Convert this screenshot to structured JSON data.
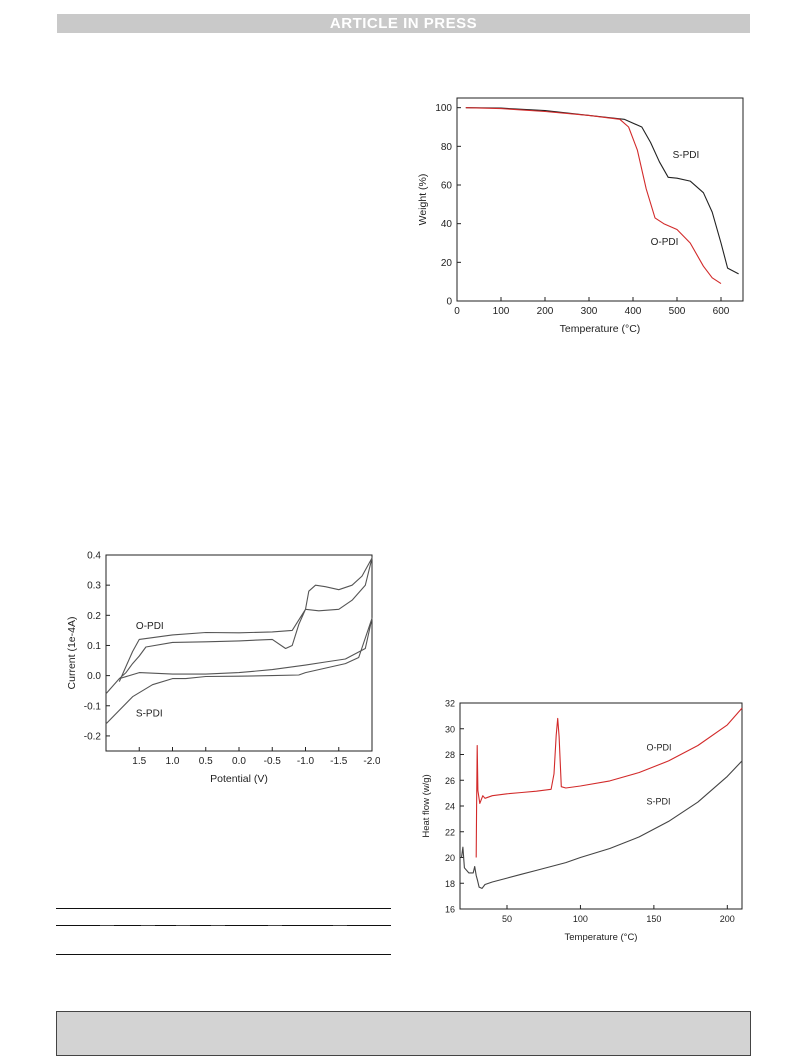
{
  "header": {
    "text": "ARTICLE IN PRESS"
  },
  "charts": [
    {
      "id": "tga",
      "xlabel": "Temperature (°C)",
      "ylabel": "Weight (%)",
      "xlim": [
        0,
        650
      ],
      "ylim": [
        0,
        105
      ],
      "xticks": [
        0,
        100,
        200,
        300,
        400,
        500,
        600
      ],
      "yticks": [
        0,
        20,
        40,
        60,
        80,
        100
      ],
      "annotations": [
        {
          "text": "S-PDI",
          "x": 490,
          "y": 74
        },
        {
          "text": "O-PDI",
          "x": 440,
          "y": 29
        }
      ]
    },
    {
      "id": "cv",
      "xlabel": "Potential (V)",
      "ylabel": "Current (1e-4A)",
      "xlim": [
        2.0,
        -2.0
      ],
      "ylim": [
        -0.25,
        0.4
      ],
      "xticks": [
        1.5,
        1.0,
        0.5,
        0.0,
        -0.5,
        -1.0,
        -1.5,
        -2.0
      ],
      "xtick_labels": [
        "1.5",
        "1.0",
        "0.5",
        "0.0",
        "-0.5",
        "-1.0",
        "-1.5",
        "-2.0"
      ],
      "yticks": [
        -0.2,
        -0.1,
        0.0,
        0.1,
        0.2,
        0.3,
        0.4
      ],
      "ytick_labels": [
        "-0.2",
        "-0.1",
        "0.0",
        "0.1",
        "0.2",
        "0.3",
        "0.4"
      ],
      "annotations": [
        {
          "text": "O-PDI",
          "x": 1.55,
          "y": 0.155
        },
        {
          "text": "S-PDI",
          "x": 1.55,
          "y": -0.135
        }
      ]
    },
    {
      "id": "dsc",
      "xlabel": "Temperature (°C)",
      "ylabel": "Heat flow (w/g)",
      "xlim": [
        18,
        210
      ],
      "ylim": [
        16,
        32
      ],
      "xticks": [
        50,
        100,
        150,
        200
      ],
      "yticks": [
        16,
        18,
        20,
        22,
        24,
        26,
        28,
        30,
        32
      ],
      "annotations": [
        {
          "text": "O-PDI",
          "x": 145,
          "y": 28.3
        },
        {
          "text": "S-PDI",
          "x": 145,
          "y": 24.1
        }
      ]
    }
  ],
  "chart_data": [
    {
      "type": "line",
      "xlabel": "Temperature (°C)",
      "ylabel": "Weight (%)",
      "xlim": [
        0,
        650
      ],
      "ylim": [
        0,
        105
      ],
      "grid": false,
      "series": [
        {
          "name": "S-PDI",
          "color": "#222222",
          "x": [
            20,
            100,
            200,
            300,
            380,
            420,
            440,
            460,
            480,
            500,
            530,
            560,
            580,
            600,
            615,
            640
          ],
          "y": [
            100,
            99.8,
            98.5,
            96,
            94,
            90,
            82,
            72,
            64,
            63.5,
            62,
            56,
            46,
            30,
            17,
            14
          ]
        },
        {
          "name": "O-PDI",
          "color": "#d22a2a",
          "x": [
            20,
            100,
            200,
            300,
            370,
            390,
            410,
            430,
            450,
            470,
            500,
            530,
            560,
            580,
            600
          ],
          "y": [
            100,
            99.5,
            98,
            96,
            94,
            90,
            78,
            58,
            43,
            40,
            37,
            30,
            18,
            12,
            9
          ]
        }
      ]
    },
    {
      "type": "line",
      "xlabel": "Potential (V)",
      "ylabel": "Current (1e-4A)",
      "xlim": [
        2.0,
        -2.0
      ],
      "ylim": [
        -0.25,
        0.4
      ],
      "grid": false,
      "series": [
        {
          "name": "O-PDI",
          "color": "#555555",
          "x": [
            1.8,
            1.6,
            1.5,
            1.0,
            0.5,
            0.0,
            -0.5,
            -0.8,
            -1.0,
            -1.05,
            -1.15,
            -1.3,
            -1.5,
            -1.7,
            -1.85,
            -2.0,
            -1.9,
            -1.7,
            -1.5,
            -1.2,
            -1.0,
            -0.9,
            -0.8,
            -0.7,
            -0.5,
            0.0,
            0.5,
            1.0,
            1.4,
            1.5,
            1.6,
            1.7,
            1.8
          ],
          "y": [
            -0.02,
            0.08,
            0.12,
            0.135,
            0.143,
            0.142,
            0.145,
            0.15,
            0.22,
            0.28,
            0.3,
            0.295,
            0.285,
            0.3,
            0.33,
            0.39,
            0.3,
            0.25,
            0.22,
            0.215,
            0.22,
            0.17,
            0.1,
            0.09,
            0.12,
            0.115,
            0.112,
            0.11,
            0.095,
            0.065,
            0.04,
            0.01,
            -0.01
          ]
        },
        {
          "name": "S-PDI",
          "color": "#555555",
          "x": [
            2.0,
            1.8,
            1.5,
            1.0,
            0.5,
            0.0,
            -0.5,
            -1.0,
            -1.3,
            -1.6,
            -1.9,
            -2.0,
            -1.8,
            -1.6,
            -1.3,
            -1.0,
            -0.9,
            -0.5,
            0.0,
            0.5,
            0.8,
            1.0,
            1.3,
            1.6,
            2.0
          ],
          "y": [
            -0.06,
            -0.01,
            0.01,
            0.005,
            0.005,
            0.01,
            0.02,
            0.035,
            0.045,
            0.055,
            0.09,
            0.19,
            0.06,
            0.04,
            0.025,
            0.01,
            0.002,
            0.0,
            -0.002,
            -0.003,
            -0.01,
            -0.01,
            -0.03,
            -0.07,
            -0.16
          ]
        }
      ]
    },
    {
      "type": "line",
      "xlabel": "Temperature (°C)",
      "ylabel": "Heat flow (w/g)",
      "xlim": [
        18,
        210
      ],
      "ylim": [
        16,
        32
      ],
      "grid": false,
      "series": [
        {
          "name": "O-PDI",
          "color": "#d22a2a",
          "x": [
            29,
            29.3,
            29.7,
            30.2,
            31.5,
            33.5,
            35,
            40,
            50,
            60,
            70,
            80,
            82,
            83.5,
            84.5,
            85.5,
            87,
            90,
            100,
            120,
            140,
            160,
            180,
            200,
            210
          ],
          "y": [
            20,
            24,
            28.7,
            25.2,
            24.2,
            24.8,
            24.6,
            24.8,
            24.95,
            25.05,
            25.15,
            25.3,
            26.5,
            29.5,
            30.8,
            29.4,
            25.5,
            25.4,
            25.55,
            25.95,
            26.6,
            27.5,
            28.7,
            30.3,
            31.6
          ]
        },
        {
          "name": "S-PDI",
          "color": "#444444",
          "x": [
            19,
            20,
            21,
            24,
            27,
            28,
            29,
            30,
            31,
            33,
            35,
            40,
            50,
            60,
            70,
            80,
            90,
            100,
            120,
            140,
            160,
            180,
            200,
            210
          ],
          "y": [
            20,
            20.8,
            19.2,
            18.8,
            18.8,
            19.3,
            18.6,
            18.2,
            17.7,
            17.6,
            17.9,
            18.1,
            18.4,
            18.7,
            19.0,
            19.3,
            19.6,
            20.0,
            20.7,
            21.6,
            22.8,
            24.3,
            26.3,
            27.5
          ]
        }
      ]
    }
  ]
}
